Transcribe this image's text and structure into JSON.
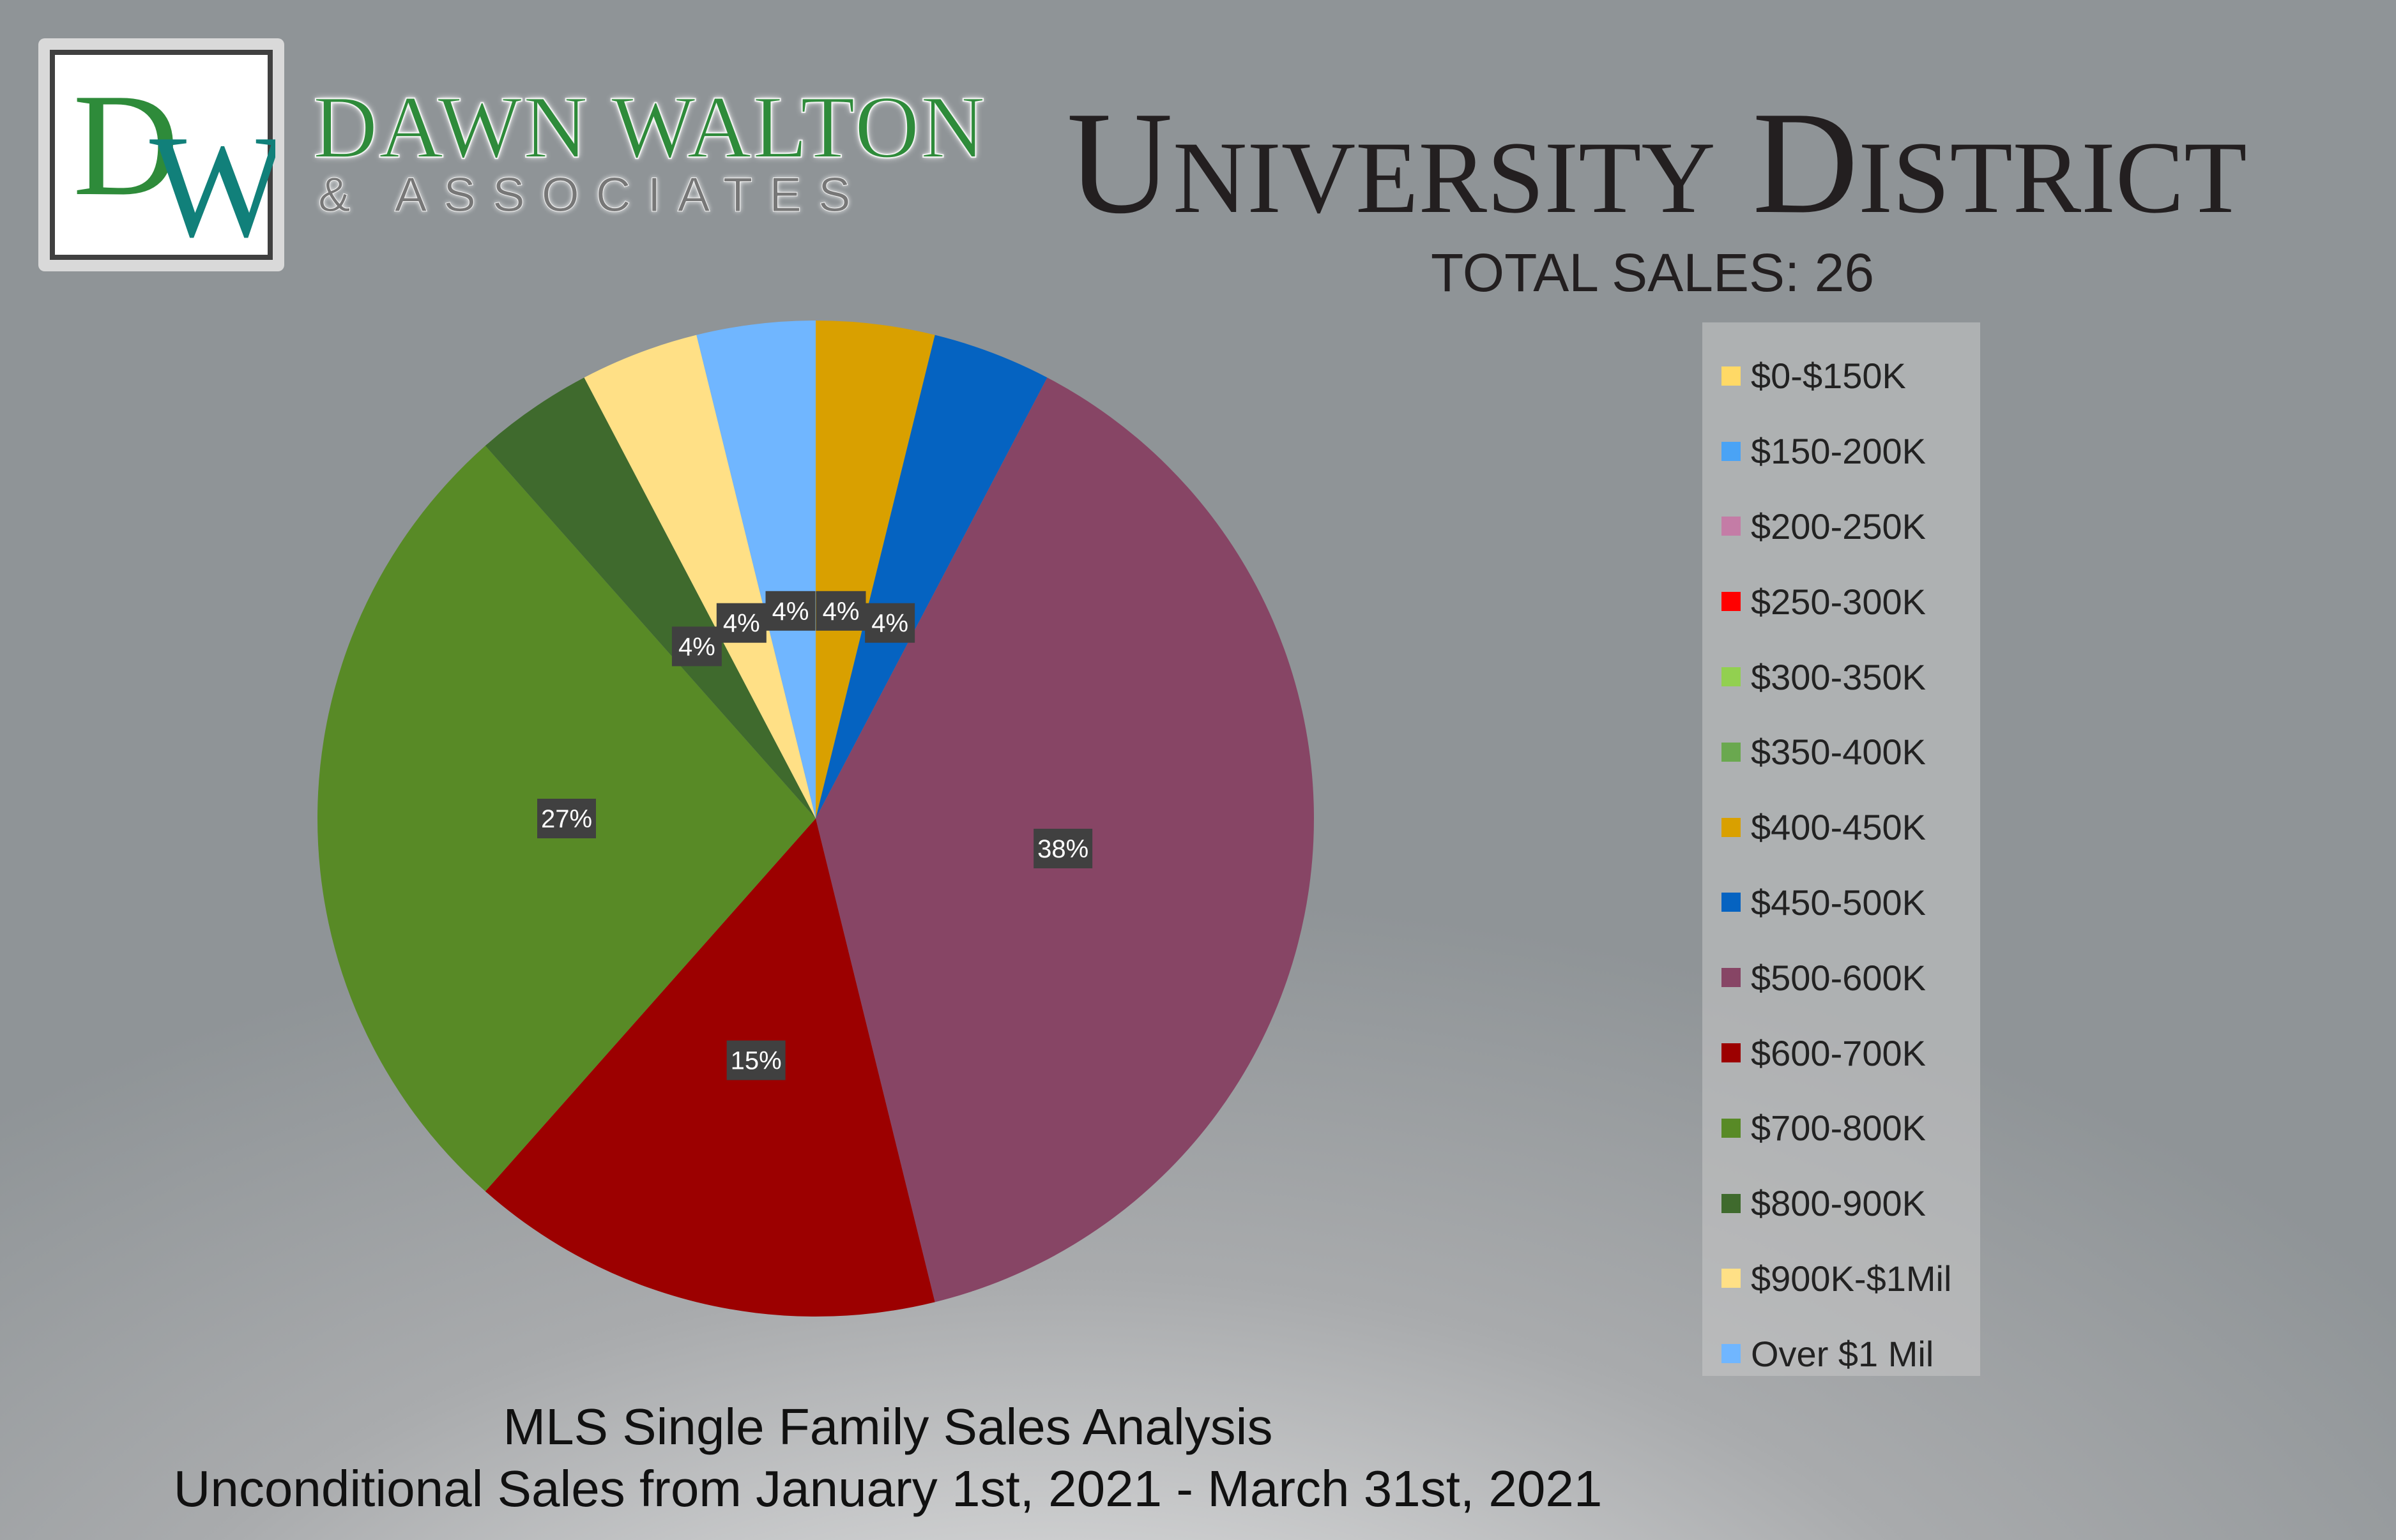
{
  "brand": {
    "logo_letters": "DW",
    "name": "DAWN WALTON",
    "subtitle": "& ASSOCIATES"
  },
  "header": {
    "title": "University District",
    "total_sales": "TOTAL SALES: 26"
  },
  "footer": {
    "line1": "MLS Single Family Sales Analysis",
    "line2": "Unconditional Sales from January 1st, 2021 - March 31st, 2021"
  },
  "colors": {
    "brand_green": "#2e8b3a",
    "brand_teal": "#11807a"
  },
  "chart_data": {
    "type": "pie",
    "title": "",
    "categories": [
      "$0-$150K",
      "$150-200K",
      "$200-250K",
      "$250-300K",
      "$300-350K",
      "$350-400K",
      "$400-450K",
      "$450-500K",
      "$500-600K",
      "$600-700K",
      "$700-800K",
      "$800-900K",
      "$900K-$1Mil",
      "Over $1 Mil"
    ],
    "values": [
      0,
      0,
      0,
      0,
      0,
      0,
      1,
      1,
      10,
      4,
      7,
      1,
      1,
      1
    ],
    "data_labels": [
      "",
      "",
      "",
      "",
      "",
      "",
      "4%",
      "4%",
      "38%",
      "15%",
      "27%",
      "4%",
      "4%",
      "4%"
    ],
    "colors": [
      "#ffd966",
      "#4aa3f5",
      "#c47ca6",
      "#ff0000",
      "#92d050",
      "#6aa84f",
      "#d9a000",
      "#0563c1",
      "#874565",
      "#9c0000",
      "#588a26",
      "#3f6a2d",
      "#ffe086",
      "#70b6ff"
    ],
    "legend": "right",
    "start_angle_deg": 0,
    "direction": "clockwise"
  }
}
